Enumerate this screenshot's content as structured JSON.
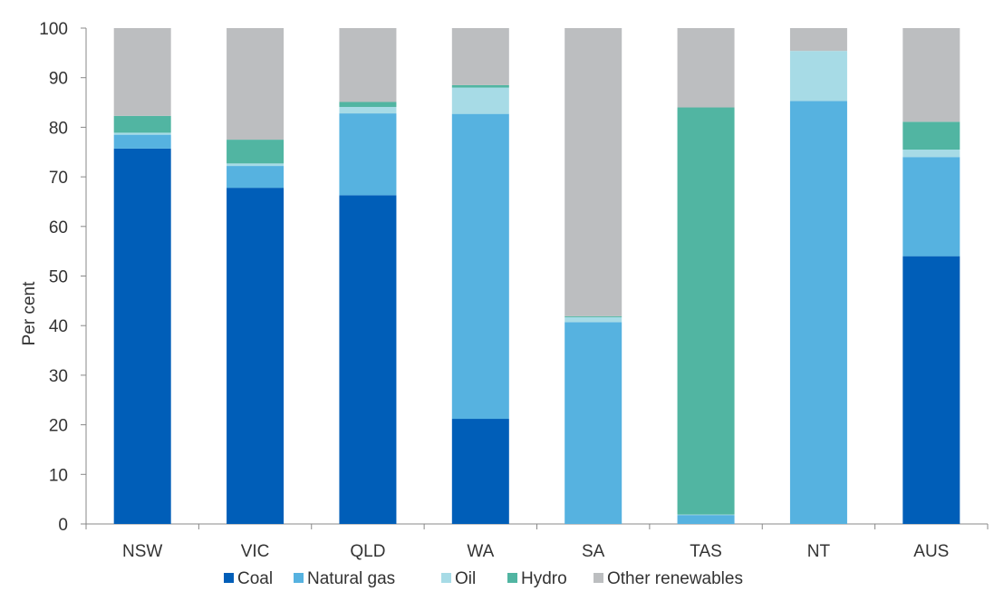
{
  "chart_data": {
    "type": "bar",
    "stacked": true,
    "title": "",
    "xlabel": "",
    "ylabel": "Per cent",
    "ylim": [
      0,
      100
    ],
    "yticks": [
      0,
      10,
      20,
      30,
      40,
      50,
      60,
      70,
      80,
      90,
      100
    ],
    "grid": false,
    "legend_position": "bottom",
    "categories": [
      "NSW",
      "VIC",
      "QLD",
      "WA",
      "SA",
      "TAS",
      "NT",
      "AUS"
    ],
    "series": [
      {
        "name": "Coal",
        "color": "#005eb8",
        "values": [
          75.7,
          67.8,
          66.3,
          21.2,
          0,
          0,
          0,
          54.0
        ]
      },
      {
        "name": "Natural gas",
        "color": "#56b2e0",
        "values": [
          2.8,
          4.4,
          16.5,
          61.5,
          40.7,
          1.8,
          85.3,
          20.0
        ]
      },
      {
        "name": "Oil",
        "color": "#a7dbe6",
        "values": [
          0.4,
          0.5,
          1.3,
          5.3,
          1.0,
          0.1,
          10.1,
          1.5
        ]
      },
      {
        "name": "Hydro",
        "color": "#51b5a2",
        "values": [
          3.4,
          4.8,
          1.0,
          0.5,
          0.2,
          82.1,
          0,
          5.6
        ]
      },
      {
        "name": "Other renewables",
        "color": "#bcbec0",
        "values": [
          17.7,
          22.5,
          14.9,
          11.5,
          58.1,
          16.0,
          4.6,
          18.9
        ]
      }
    ]
  }
}
